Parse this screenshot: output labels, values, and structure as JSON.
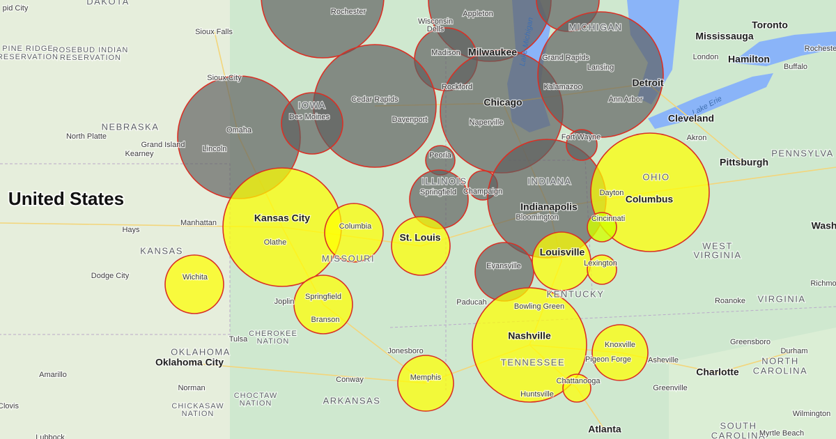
{
  "labels": [
    "pid City",
    "DAKOTA",
    "Rochester",
    "Appleton",
    "Wisconsin",
    "Dells",
    "Sioux Falls",
    "MICHIGAN",
    "Toronto",
    "Mississauga",
    "Rocheste",
    "PINE RIDGE",
    "RESERVATION",
    "ROSEBUD INDIAN",
    "RESERVATION",
    "Madison",
    "Milwaukee",
    "Grand Rapids",
    "London",
    "Hamilton",
    "Buffalo",
    "Lansing",
    "Sioux City",
    "Cedar Rapids",
    "Rockford",
    "Kalamazoo",
    "Detroit",
    "Ann Arbor",
    "IOWA",
    "Des Moines",
    "Chicago",
    "Lake Erie",
    "Davenport",
    "Naperville",
    "Cleveland",
    "NEBRASKA",
    "North Platte",
    "Omaha",
    "Fort Wayne",
    "Akron",
    "Grand Island",
    "Lincoln",
    "Kearney",
    "Peoria",
    "PENNSYLVA",
    "Pittsburgh",
    "ILLINOIS",
    "INDIANA",
    "OHIO",
    "Springfield",
    "Champaign",
    "Dayton",
    "United States",
    "Columbus",
    "Indianapolis",
    "Bloomington",
    "Cincinnati",
    "Kansas City",
    "Manhattan",
    "Olathe",
    "Columbia",
    "Hays",
    "Washi",
    "St. Louis",
    "WEST",
    "VIRGINIA",
    "KANSAS",
    "Louisville",
    "MISSOURI",
    "Lexington",
    "Evansville",
    "Dodge City",
    "Wichita",
    "Richmo",
    "KENTUCKY",
    "Springfield",
    "Roanoke",
    "VIRGINIA",
    "Joplin",
    "Paducah",
    "Bowling Green",
    "Branson",
    "Nashville",
    "CHEROKEE",
    "NATION",
    "Tulsa",
    "Greensboro",
    "Knoxville",
    "Jonesboro",
    "Durham",
    "OKLAHOMA",
    "Pigeon Forge",
    "Asheville",
    "Oklahoma City",
    "TENNESSEE",
    "NORTH",
    "CAROLINA",
    "Charlotte",
    "Amarillo",
    "Memphis",
    "Conway",
    "Chattanooga",
    "Norman",
    "Greenville",
    "Huntsville",
    "CHOCTAW",
    "NATION",
    "ARKANSAS",
    "CHICKASAW",
    "NATION",
    "Clovis",
    "Wilmington",
    "SOUTH",
    "CAROLINA",
    "Atlanta",
    "Myrtle Beach",
    "Lubbock",
    "Lake Michigan"
  ]
}
